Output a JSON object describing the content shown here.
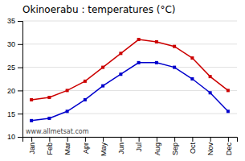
{
  "chart_data": {
    "type": "line",
    "title": "Okinoerabu : temperatures (°C)",
    "categories": [
      "Jan",
      "Feb",
      "Mar",
      "Apr",
      "May",
      "Jun",
      "Jul",
      "Aug",
      "Sep",
      "Oct",
      "Nov",
      "Dec"
    ],
    "series": [
      {
        "color": "#cc0000",
        "marker": "square",
        "values": [
          18,
          18.5,
          20,
          22,
          25,
          28,
          31,
          30.5,
          29.5,
          27,
          23,
          20
        ]
      },
      {
        "color": "#0000cc",
        "marker": "square",
        "values": [
          13.5,
          14,
          15.5,
          18,
          21,
          23.5,
          26,
          26,
          25,
          22.5,
          19.5,
          15.5
        ]
      }
    ],
    "ylim": [
      10,
      35
    ],
    "yticks": [
      10,
      15,
      20,
      25,
      30,
      35
    ],
    "grid": true,
    "annotation": "www.allmetsat.com"
  }
}
